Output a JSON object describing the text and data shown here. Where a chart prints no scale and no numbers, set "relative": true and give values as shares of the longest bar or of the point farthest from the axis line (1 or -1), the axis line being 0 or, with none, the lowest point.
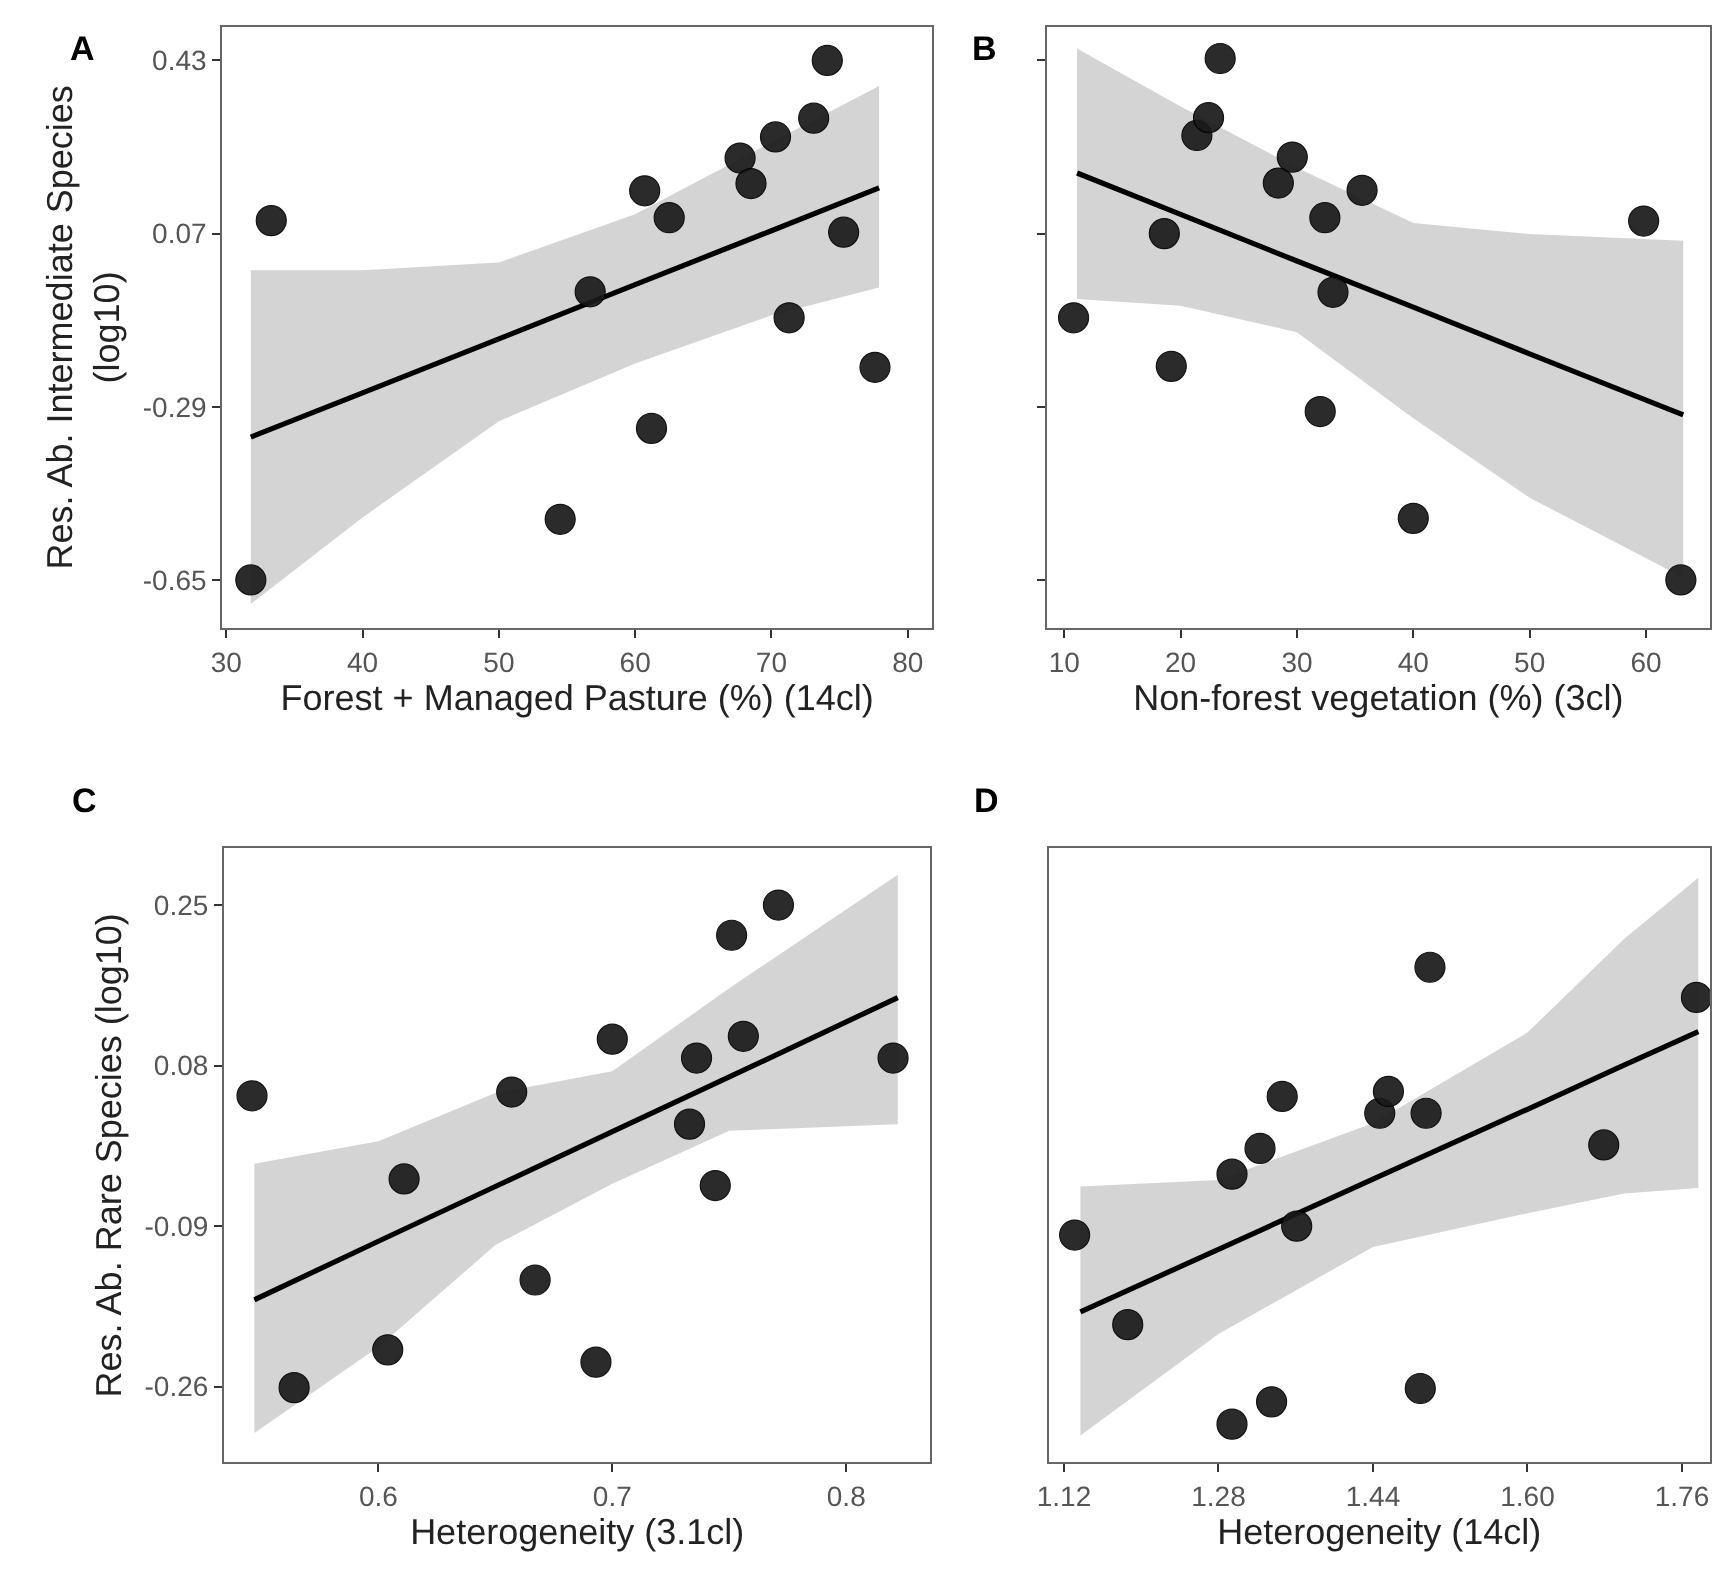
{
  "chart_data": [
    {
      "type": "scatter",
      "title": "A",
      "xlabel": "Forest + Managed Pasture (%) (14cl)",
      "ylabel": "Res. Ab. Intermediate Species\n(log10)",
      "xlim": [
        29.7,
        81.8
      ],
      "xticks": [
        30,
        40,
        50,
        60,
        70,
        80
      ],
      "ylim": [
        -0.75,
        0.5
      ],
      "yticks": [
        -0.65,
        -0.29,
        0.07,
        0.43
      ],
      "series": [
        {
          "marker": "circle",
          "color": "#1a1a1a",
          "x": [
            31.8,
            33.3,
            54.5,
            56.7,
            60.7,
            61.2,
            62.5,
            67.7,
            68.5,
            70.3,
            71.3,
            73.1,
            74.1,
            75.3,
            77.6
          ],
          "values": [
            -0.65,
            0.097,
            -0.524,
            -0.051,
            0.159,
            -0.335,
            0.103,
            0.227,
            0.174,
            0.271,
            -0.105,
            0.31,
            0.43,
            0.073,
            -0.208
          ]
        },
        {
          "type": "line",
          "line_style": "solid",
          "color": "#000000",
          "x": [
            31.8,
            40,
            50,
            60,
            70,
            77.9
          ],
          "values": [
            -0.353,
            -0.261,
            -0.149,
            -0.036,
            0.076,
            0.165
          ],
          "lower": [
            -0.7,
            -0.52,
            -0.32,
            -0.2,
            -0.1,
            -0.042
          ],
          "upper": [
            -0.006,
            -0.006,
            0.01,
            0.11,
            0.26,
            0.377
          ]
        }
      ]
    },
    {
      "type": "scatter",
      "title": "B",
      "xlabel": "Non-forest vegetation (%) (3cl)",
      "tick_labels": "x",
      "xlim": [
        8.5,
        65.5
      ],
      "xticks": [
        10,
        20,
        30,
        40,
        50,
        60
      ],
      "ylim": [
        -0.75,
        0.5
      ],
      "yticks": [
        -0.65,
        -0.29,
        0.07,
        0.43
      ],
      "series": [
        {
          "marker": "circle",
          "color": "#1a1a1a",
          "x": [
            10.8,
            18.6,
            19.2,
            21.4,
            22.4,
            23.4,
            28.4,
            29.6,
            32.0,
            32.4,
            33.1,
            35.6,
            40.0,
            59.8,
            63.0
          ],
          "values": [
            -0.105,
            0.07,
            -0.206,
            0.274,
            0.311,
            0.434,
            0.175,
            0.229,
            -0.3,
            0.103,
            -0.052,
            0.16,
            -0.522,
            0.096,
            -0.65
          ]
        },
        {
          "type": "line",
          "line_style": "solid",
          "color": "#000000",
          "x": [
            11.1,
            20,
            30,
            40,
            50,
            63.2
          ],
          "values": [
            0.196,
            0.11,
            0.013,
            -0.083,
            -0.18,
            -0.307
          ],
          "lower": [
            -0.066,
            -0.08,
            -0.135,
            -0.314,
            -0.479,
            -0.645
          ],
          "upper": [
            0.455,
            0.334,
            0.207,
            0.092,
            0.069,
            0.055
          ]
        }
      ]
    },
    {
      "type": "scatter",
      "title": "C",
      "xlabel": "Heterogeneity (3.1cl)",
      "ylabel": "Res. Ab. Rare Species (log10)",
      "xlim": [
        0.534,
        0.836
      ],
      "xticks": [
        0.6,
        0.7,
        0.8
      ],
      "ylim": [
        -0.34,
        0.31
      ],
      "yticks": [
        -0.26,
        -0.09,
        0.08,
        0.25
      ],
      "series": [
        {
          "marker": "circle",
          "color": "#1a1a1a",
          "x": [
            0.546,
            0.564,
            0.604,
            0.611,
            0.657,
            0.667,
            0.693,
            0.7,
            0.733,
            0.736,
            0.744,
            0.751,
            0.756,
            0.771,
            0.82
          ],
          "values": [
            0.048,
            -0.261,
            -0.221,
            -0.04,
            0.052,
            -0.147,
            -0.234,
            0.108,
            0.018,
            0.088,
            -0.047,
            0.218,
            0.111,
            0.25,
            0.088
          ]
        },
        {
          "type": "line",
          "line_style": "solid",
          "color": "#000000",
          "x": [
            0.547,
            0.6,
            0.65,
            0.7,
            0.75,
            0.822
          ],
          "values": [
            -0.168,
            -0.106,
            -0.048,
            0.01,
            0.068,
            0.152
          ],
          "lower": [
            -0.309,
            -0.218,
            -0.11,
            -0.045,
            0.011,
            0.018
          ],
          "upper": [
            -0.024,
            0.0,
            0.051,
            0.074,
            0.162,
            0.282
          ]
        }
      ]
    },
    {
      "type": "scatter",
      "title": "D",
      "xlabel": "Heterogeneity (14cl)",
      "tick_labels": "x",
      "relative": true,
      "xlim": [
        1.104,
        1.789
      ],
      "xticks": [
        1.12,
        1.28,
        1.44,
        {
          "value": 1.6,
          "label": "1.60"
        },
        1.76
      ],
      "series": [
        {
          "marker": "circle",
          "color": "#1a1a1a",
          "x": [
            1.131,
            1.186,
            1.294,
            1.294,
            1.323,
            1.335,
            1.346,
            1.361,
            1.447,
            1.456,
            1.489,
            1.495,
            1.499,
            1.679,
            1.775
          ],
          "values": [
            0.459,
            0.278,
            0.582,
            0.077,
            0.634,
            0.122,
            0.739,
            0.477,
            0.705,
            0.749,
            0.149,
            0.705,
            1.0,
            0.641,
            0.939
          ]
        },
        {
          "type": "line",
          "line_style": "solid",
          "color": "#000000",
          "x": [
            1.137,
            1.28,
            1.44,
            1.6,
            1.7,
            1.777
          ],
          "values": [
            0.304,
            0.43,
            0.572,
            0.713,
            0.802,
            0.87
          ],
          "lower": [
            0.054,
            0.259,
            0.435,
            0.503,
            0.543,
            0.554
          ],
          "upper": [
            0.557,
            0.57,
            0.685,
            0.868,
            1.057,
            1.181
          ]
        }
      ]
    }
  ]
}
